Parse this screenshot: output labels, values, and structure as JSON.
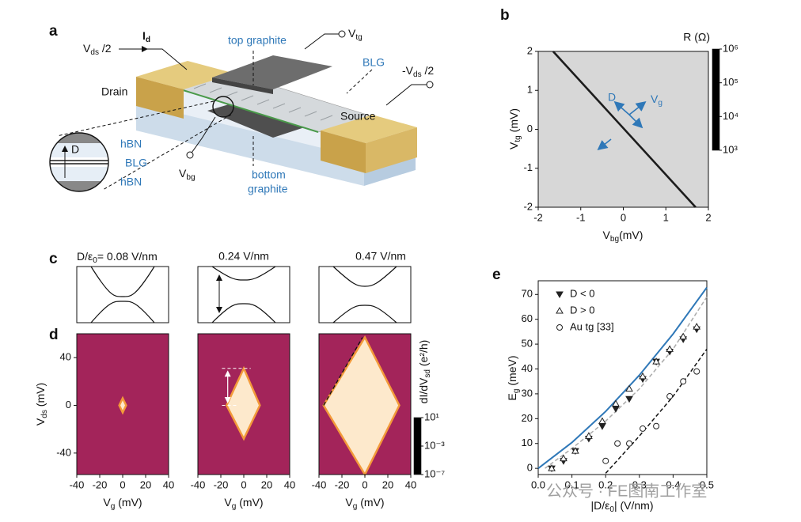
{
  "panel_labels": [
    "a",
    "b",
    "c",
    "d",
    "e"
  ],
  "schematic": {
    "vds_half": [
      "V",
      "ds",
      " /2"
    ],
    "id": [
      "I",
      "d"
    ],
    "vtg": [
      "V",
      "tg"
    ],
    "top_graphite": "top graphite",
    "blg": "BLG",
    "neg_vds_half": [
      "-V",
      "ds",
      " /2"
    ],
    "drain": "Drain",
    "source": "Source",
    "vbg": [
      "V",
      "bg"
    ],
    "bottom_graphite": [
      "bottom",
      "graphite"
    ],
    "inset": {
      "hbn_top": "hBN",
      "d": "D",
      "blg": "BLG",
      "hbn_bottom": "hBN"
    }
  },
  "band_diagrams": {
    "labels": [
      [
        "D/ε",
        "0",
        "= 0.08 V/nm"
      ],
      "0.24 V/nm",
      "0.47 V/nm"
    ]
  },
  "chart_data": [
    {
      "type": "heatmap",
      "xlabel": [
        "V",
        "bg",
        "(mV)"
      ],
      "ylabel": [
        "V",
        "tg",
        " (mV)"
      ],
      "xlim": [
        -2,
        2
      ],
      "ylim": [
        -2,
        2
      ],
      "xticks": [
        -2,
        -1,
        0,
        1,
        2
      ],
      "yticks": [
        -2,
        -1,
        0,
        1,
        2
      ],
      "background": "#d7d7d7",
      "peak": {
        "x": [
          -1.65,
          1.7
        ],
        "y": [
          2,
          -2
        ],
        "color": "#1c1c1c"
      },
      "annotations": [
        "D",
        [
          "V",
          "g"
        ]
      ],
      "colorbar": {
        "label": "R (Ω)",
        "scale": "log",
        "lim": [
          1000,
          1000000
        ],
        "ticks": [
          {
            "value": 1000,
            "label": "10³"
          },
          {
            "value": 10000,
            "label": "10⁴"
          },
          {
            "value": 100000,
            "label": "10⁵"
          },
          {
            "value": 1000000,
            "label": "10⁶"
          }
        ]
      }
    },
    {
      "type": "map",
      "xlabel": [
        "V",
        "g",
        " (mV)"
      ],
      "ylabel": [
        "V",
        "ds",
        " (mV)"
      ],
      "xlim": [
        -40,
        40
      ],
      "ylim": [
        -58,
        60
      ],
      "xticks": [
        -40,
        -20,
        0,
        20,
        40
      ],
      "yticks": [
        -40,
        0,
        40
      ],
      "background": "#a3245a",
      "diamond_fill": "#fde9cc",
      "diamond_edge": "#f39a3a",
      "maps": [
        {
          "diamond": {
            "x": [
              -3,
              0,
              3,
              0
            ],
            "y": [
              0,
              6,
              0,
              -6
            ]
          }
        },
        {
          "diamond": {
            "x": [
              -15,
              0,
              14,
              0
            ],
            "y": [
              0,
              31,
              0,
              -28
            ]
          }
        },
        {
          "diamond": {
            "x": [
              -36,
              0,
              30,
              0
            ],
            "y": [
              0,
              57,
              0,
              -58
            ]
          }
        }
      ],
      "colorbar": {
        "label": [
          "dI/dV",
          "sd",
          " (e²/h)"
        ],
        "scale": "log",
        "lim": [
          1e-07,
          10
        ],
        "ticks": [
          {
            "value": 10,
            "label": "10¹"
          },
          {
            "value": 0.001,
            "label": "10⁻³"
          },
          {
            "value": 1e-07,
            "label": "10⁻⁷"
          }
        ]
      }
    },
    {
      "type": "scatter",
      "xlabel": [
        "|D/ε",
        "0",
        "| (V/nm)"
      ],
      "ylabel": [
        "E",
        "g",
        "  (meV)"
      ],
      "xlim": [
        0,
        0.5
      ],
      "ylim": [
        -2.5,
        75.5
      ],
      "xticks": [
        {
          "value": 0,
          "label": "0.0"
        },
        0.1,
        0.2,
        0.3,
        0.4,
        0.5
      ],
      "yticks": [
        0,
        10,
        20,
        30,
        40,
        50,
        60,
        70
      ],
      "series": [
        {
          "name": "D < 0",
          "marker": "triangle-down-filled",
          "color": "#222222",
          "x": [
            0.04,
            0.075,
            0.11,
            0.15,
            0.19,
            0.23,
            0.27,
            0.31,
            0.35,
            0.39,
            0.43,
            0.47
          ],
          "values": [
            0,
            3,
            7,
            12,
            17,
            24,
            28,
            36,
            43,
            47,
            52,
            56
          ]
        },
        {
          "name": "D > 0",
          "marker": "triangle-up-open",
          "color": "#222222",
          "x": [
            0.04,
            0.075,
            0.11,
            0.15,
            0.19,
            0.23,
            0.27,
            0.31,
            0.35,
            0.39,
            0.43,
            0.47
          ],
          "values": [
            0,
            4,
            7,
            13,
            19,
            26,
            32,
            37,
            43,
            48,
            53,
            57
          ]
        },
        {
          "name": "Au tg [33]",
          "marker": "circle-open",
          "color": "#222222",
          "x": [
            0.2,
            0.235,
            0.27,
            0.31,
            0.35,
            0.39,
            0.43,
            0.47
          ],
          "values": [
            3,
            10,
            10,
            16,
            17,
            29,
            35,
            39
          ]
        }
      ],
      "lines": [
        {
          "color": "#2f78b8",
          "dash": false,
          "x": [
            0,
            0.1,
            0.2,
            0.3,
            0.4,
            0.5
          ],
          "values": [
            0,
            10.4,
            22.9,
            37.5,
            54.1,
            72.8
          ]
        },
        {
          "color": "#aaaaaa",
          "dash": true,
          "x": [
            0.02,
            0.1,
            0.2,
            0.3,
            0.4,
            0.5
          ],
          "values": [
            0,
            8,
            19,
            32,
            48,
            69
          ]
        },
        {
          "color": "#111111",
          "dash": true,
          "x": [
            0.2,
            0.3,
            0.4,
            0.5
          ],
          "values": [
            -2,
            13,
            29,
            48
          ]
        }
      ]
    }
  ],
  "watermark": "公众号 · FE图南工作室"
}
